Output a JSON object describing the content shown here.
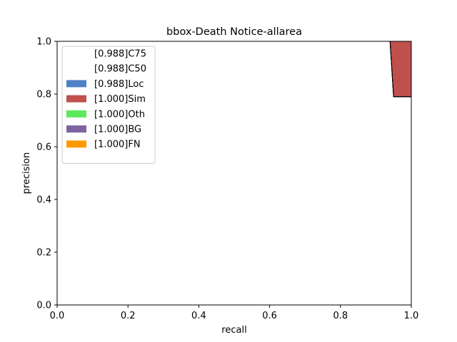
{
  "chart_data": {
    "type": "area",
    "title": "bbox-Death Notice-allarea",
    "xlabel": "recall",
    "ylabel": "precision",
    "xlim": [
      0.0,
      1.0
    ],
    "ylim": [
      0.0,
      1.0
    ],
    "xticks": [
      "0.0",
      "0.2",
      "0.4",
      "0.6",
      "0.8",
      "1.0"
    ],
    "yticks": [
      "0.0",
      "0.2",
      "0.4",
      "0.6",
      "0.8",
      "1.0"
    ],
    "grid": false,
    "legend_position": "top-left",
    "series": [
      {
        "name": "[0.988]C75",
        "color": "#ffffff",
        "x": [
          0.0,
          0.94,
          0.95,
          1.0
        ],
        "y": [
          1.0,
          1.0,
          0.79,
          0.79
        ]
      },
      {
        "name": "[0.988]C50",
        "color": "#ffffff",
        "x": [
          0.0,
          0.94,
          0.95,
          1.0
        ],
        "y": [
          1.0,
          1.0,
          0.79,
          0.79
        ]
      },
      {
        "name": "[0.988]Loc",
        "color": "#4f81c5",
        "x": [
          0.0,
          0.94,
          0.95,
          1.0
        ],
        "y": [
          1.0,
          1.0,
          0.79,
          0.79
        ]
      },
      {
        "name": "[1.000]Sim",
        "color": "#c0504d",
        "x": [
          0.0,
          1.0
        ],
        "y": [
          1.0,
          1.0
        ]
      },
      {
        "name": "[1.000]Oth",
        "color": "#5de85d",
        "x": [
          0.0,
          1.0
        ],
        "y": [
          1.0,
          1.0
        ]
      },
      {
        "name": "[1.000]BG",
        "color": "#8064a2",
        "x": [
          0.0,
          1.0
        ],
        "y": [
          1.0,
          1.0
        ]
      },
      {
        "name": "[1.000]FN",
        "color": "#ff9900",
        "x": [
          0.0,
          1.0
        ],
        "y": [
          1.0,
          1.0
        ]
      }
    ]
  }
}
